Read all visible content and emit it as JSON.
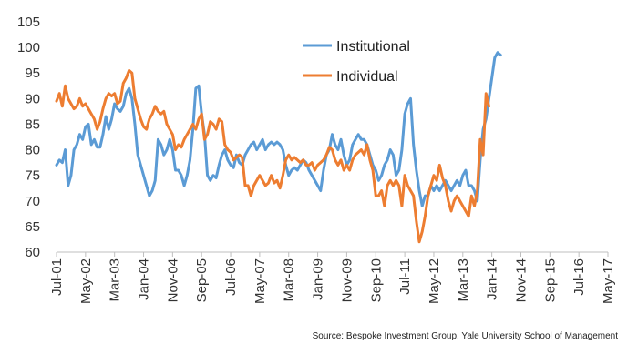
{
  "chart_data": {
    "type": "line",
    "title": "",
    "xlabel": "",
    "ylabel": "",
    "ylim": [
      60,
      105
    ],
    "yticks": [
      60,
      65,
      70,
      75,
      80,
      85,
      90,
      95,
      100,
      105
    ],
    "grid": false,
    "legend_position": "top-center",
    "x_start": "Jul-01",
    "x_end": "May-17",
    "x_tick_labels": [
      "Jul-01",
      "May-02",
      "Mar-03",
      "Jan-04",
      "Nov-04",
      "Sep-05",
      "Jul-06",
      "May-07",
      "Mar-08",
      "Jan-09",
      "Nov-09",
      "Sep-10",
      "Jul-11",
      "May-12",
      "Mar-13",
      "Jan-14",
      "Nov-14",
      "Sep-15",
      "Jul-16",
      "May-17"
    ],
    "series": [
      {
        "name": "Institutional",
        "color": "#5B9BD5",
        "values": [
          [
            0,
            77
          ],
          [
            1,
            78
          ],
          [
            2,
            77.5
          ],
          [
            3,
            80
          ],
          [
            4,
            73
          ],
          [
            5,
            75
          ],
          [
            6,
            80
          ],
          [
            7,
            81
          ],
          [
            8,
            83
          ],
          [
            9,
            82
          ],
          [
            10,
            84.5
          ],
          [
            11,
            85
          ],
          [
            12,
            81
          ],
          [
            13,
            82
          ],
          [
            14,
            80.5
          ],
          [
            15,
            80.5
          ],
          [
            16,
            83
          ],
          [
            17,
            86.5
          ],
          [
            18,
            84
          ],
          [
            19,
            86
          ],
          [
            20,
            89
          ],
          [
            21,
            88
          ],
          [
            22,
            87.5
          ],
          [
            23,
            88.5
          ],
          [
            24,
            91
          ],
          [
            25,
            92
          ],
          [
            26,
            90
          ],
          [
            27,
            85
          ],
          [
            28,
            79
          ],
          [
            29,
            77
          ],
          [
            30,
            75
          ],
          [
            31,
            73
          ],
          [
            32,
            71
          ],
          [
            33,
            72
          ],
          [
            34,
            74
          ],
          [
            35,
            82
          ],
          [
            36,
            81
          ],
          [
            37,
            79
          ],
          [
            38,
            80
          ],
          [
            39,
            82
          ],
          [
            40,
            80
          ],
          [
            41,
            76
          ],
          [
            42,
            76
          ],
          [
            43,
            75
          ],
          [
            44,
            73
          ],
          [
            45,
            75
          ],
          [
            46,
            78
          ],
          [
            47,
            84
          ],
          [
            48,
            92
          ],
          [
            49,
            92.5
          ],
          [
            50,
            87
          ],
          [
            51,
            83
          ],
          [
            52,
            75
          ],
          [
            53,
            74
          ],
          [
            54,
            75
          ],
          [
            55,
            74.5
          ],
          [
            56,
            77
          ],
          [
            57,
            79
          ],
          [
            58,
            80
          ],
          [
            59,
            78
          ],
          [
            60,
            77
          ],
          [
            61,
            76.5
          ],
          [
            62,
            79
          ],
          [
            63,
            77.5
          ],
          [
            64,
            77
          ],
          [
            65,
            79
          ],
          [
            66,
            80
          ],
          [
            67,
            81
          ],
          [
            68,
            81.5
          ],
          [
            69,
            80
          ],
          [
            70,
            81
          ],
          [
            71,
            82
          ],
          [
            72,
            80
          ],
          [
            73,
            81
          ],
          [
            74,
            81.5
          ],
          [
            75,
            81
          ],
          [
            76,
            81.5
          ],
          [
            77,
            81
          ],
          [
            78,
            80
          ],
          [
            79,
            77
          ],
          [
            80,
            75
          ],
          [
            81,
            76
          ],
          [
            82,
            76.5
          ],
          [
            83,
            76
          ],
          [
            84,
            77
          ],
          [
            85,
            78
          ],
          [
            86,
            77.5
          ],
          [
            87,
            76
          ],
          [
            88,
            75
          ],
          [
            89,
            74
          ],
          [
            90,
            73
          ],
          [
            91,
            72
          ],
          [
            92,
            76
          ],
          [
            93,
            79
          ],
          [
            94,
            80
          ],
          [
            95,
            83
          ],
          [
            96,
            81
          ],
          [
            97,
            80
          ],
          [
            98,
            82
          ],
          [
            99,
            79
          ],
          [
            100,
            77
          ],
          [
            101,
            78
          ],
          [
            102,
            81
          ],
          [
            103,
            82
          ],
          [
            104,
            83
          ],
          [
            105,
            82
          ],
          [
            106,
            82
          ],
          [
            107,
            81
          ],
          [
            108,
            79
          ],
          [
            109,
            77
          ],
          [
            110,
            76
          ],
          [
            111,
            74
          ],
          [
            112,
            75
          ],
          [
            113,
            77
          ],
          [
            114,
            78
          ],
          [
            115,
            80
          ],
          [
            116,
            79
          ],
          [
            117,
            75
          ],
          [
            118,
            76
          ],
          [
            119,
            80
          ],
          [
            120,
            87
          ],
          [
            121,
            89
          ],
          [
            122,
            90
          ],
          [
            123,
            81
          ],
          [
            124,
            76
          ],
          [
            125,
            72
          ],
          [
            126,
            69
          ],
          [
            127,
            71
          ],
          [
            128,
            71
          ],
          [
            129,
            73
          ],
          [
            130,
            72
          ],
          [
            131,
            73
          ],
          [
            132,
            72
          ],
          [
            133,
            73
          ],
          [
            134,
            74
          ],
          [
            135,
            73
          ],
          [
            136,
            72
          ],
          [
            137,
            73
          ],
          [
            138,
            74
          ],
          [
            139,
            73
          ],
          [
            140,
            75
          ],
          [
            141,
            76
          ],
          [
            142,
            73
          ],
          [
            143,
            73
          ],
          [
            144,
            72
          ],
          [
            145,
            70
          ],
          [
            146,
            78
          ],
          [
            147,
            84
          ],
          [
            148,
            86
          ],
          [
            149,
            90
          ],
          [
            150,
            94
          ],
          [
            151,
            98
          ],
          [
            152,
            99
          ],
          [
            153,
            98.5
          ]
        ]
      },
      {
        "name": "Individual",
        "color": "#ED7D31",
        "values": [
          [
            0,
            89.5
          ],
          [
            1,
            91
          ],
          [
            2,
            88.5
          ],
          [
            3,
            92.5
          ],
          [
            4,
            90
          ],
          [
            5,
            89
          ],
          [
            6,
            88
          ],
          [
            7,
            88.5
          ],
          [
            8,
            90
          ],
          [
            9,
            88.5
          ],
          [
            10,
            89
          ],
          [
            11,
            88
          ],
          [
            12,
            87
          ],
          [
            13,
            86
          ],
          [
            14,
            84
          ],
          [
            15,
            85.5
          ],
          [
            16,
            88
          ],
          [
            17,
            90
          ],
          [
            18,
            91
          ],
          [
            19,
            90.5
          ],
          [
            20,
            91
          ],
          [
            21,
            89
          ],
          [
            22,
            89.5
          ],
          [
            23,
            93
          ],
          [
            24,
            94
          ],
          [
            25,
            95.5
          ],
          [
            26,
            95
          ],
          [
            27,
            90
          ],
          [
            28,
            88
          ],
          [
            29,
            86
          ],
          [
            30,
            84.5
          ],
          [
            31,
            84
          ],
          [
            32,
            86
          ],
          [
            33,
            87
          ],
          [
            34,
            88.5
          ],
          [
            35,
            87.5
          ],
          [
            36,
            87
          ],
          [
            37,
            87.5
          ],
          [
            38,
            85
          ],
          [
            39,
            84
          ],
          [
            40,
            83
          ],
          [
            41,
            80
          ],
          [
            42,
            81
          ],
          [
            43,
            80.5
          ],
          [
            44,
            82
          ],
          [
            45,
            83
          ],
          [
            46,
            84
          ],
          [
            47,
            85
          ],
          [
            48,
            84
          ],
          [
            49,
            86
          ],
          [
            50,
            87
          ],
          [
            51,
            82
          ],
          [
            52,
            83
          ],
          [
            53,
            85.5
          ],
          [
            54,
            85
          ],
          [
            55,
            84
          ],
          [
            56,
            86
          ],
          [
            57,
            85.5
          ],
          [
            58,
            81
          ],
          [
            59,
            80
          ],
          [
            60,
            79.5
          ],
          [
            61,
            78
          ],
          [
            62,
            78.5
          ],
          [
            63,
            79
          ],
          [
            64,
            78.5
          ],
          [
            65,
            73
          ],
          [
            66,
            73
          ],
          [
            67,
            71
          ],
          [
            68,
            73
          ],
          [
            69,
            74
          ],
          [
            70,
            75
          ],
          [
            71,
            74
          ],
          [
            72,
            73
          ],
          [
            73,
            73.5
          ],
          [
            74,
            75
          ],
          [
            75,
            73.5
          ],
          [
            76,
            74
          ],
          [
            77,
            72.5
          ],
          [
            78,
            75
          ],
          [
            79,
            78
          ],
          [
            80,
            79
          ],
          [
            81,
            78
          ],
          [
            82,
            78.5
          ],
          [
            83,
            78
          ],
          [
            84,
            77.5
          ],
          [
            85,
            78
          ],
          [
            86,
            77
          ],
          [
            87,
            77
          ],
          [
            88,
            77.5
          ],
          [
            89,
            76
          ],
          [
            90,
            77
          ],
          [
            91,
            77.5
          ],
          [
            92,
            78
          ],
          [
            93,
            79
          ],
          [
            94,
            80.5
          ],
          [
            95,
            80
          ],
          [
            96,
            78
          ],
          [
            97,
            77
          ],
          [
            98,
            78
          ],
          [
            99,
            76
          ],
          [
            100,
            77
          ],
          [
            101,
            76
          ],
          [
            102,
            78
          ],
          [
            103,
            79
          ],
          [
            104,
            79.5
          ],
          [
            105,
            80
          ],
          [
            106,
            79
          ],
          [
            107,
            81
          ],
          [
            108,
            78
          ],
          [
            109,
            76
          ],
          [
            110,
            71
          ],
          [
            111,
            71
          ],
          [
            112,
            72
          ],
          [
            113,
            69
          ],
          [
            114,
            73
          ],
          [
            115,
            74
          ],
          [
            116,
            73
          ],
          [
            117,
            74
          ],
          [
            118,
            73
          ],
          [
            119,
            69
          ],
          [
            120,
            75
          ],
          [
            121,
            73
          ],
          [
            122,
            72
          ],
          [
            123,
            71
          ],
          [
            124,
            66
          ],
          [
            125,
            62
          ],
          [
            126,
            64
          ],
          [
            127,
            67
          ],
          [
            128,
            71
          ],
          [
            129,
            73
          ],
          [
            130,
            75
          ],
          [
            131,
            74
          ],
          [
            132,
            77
          ],
          [
            133,
            74.5
          ],
          [
            134,
            73
          ],
          [
            135,
            70
          ],
          [
            136,
            68
          ],
          [
            137,
            70
          ],
          [
            138,
            71
          ],
          [
            139,
            70
          ],
          [
            140,
            69
          ],
          [
            141,
            68
          ],
          [
            142,
            67
          ],
          [
            143,
            71
          ],
          [
            144,
            69
          ],
          [
            145,
            72
          ],
          [
            146,
            82
          ],
          [
            147,
            79
          ],
          [
            148,
            91
          ],
          [
            149,
            88.5
          ]
        ]
      }
    ]
  },
  "source": "Source: Bespoke Investment Group, Yale University School of Management"
}
